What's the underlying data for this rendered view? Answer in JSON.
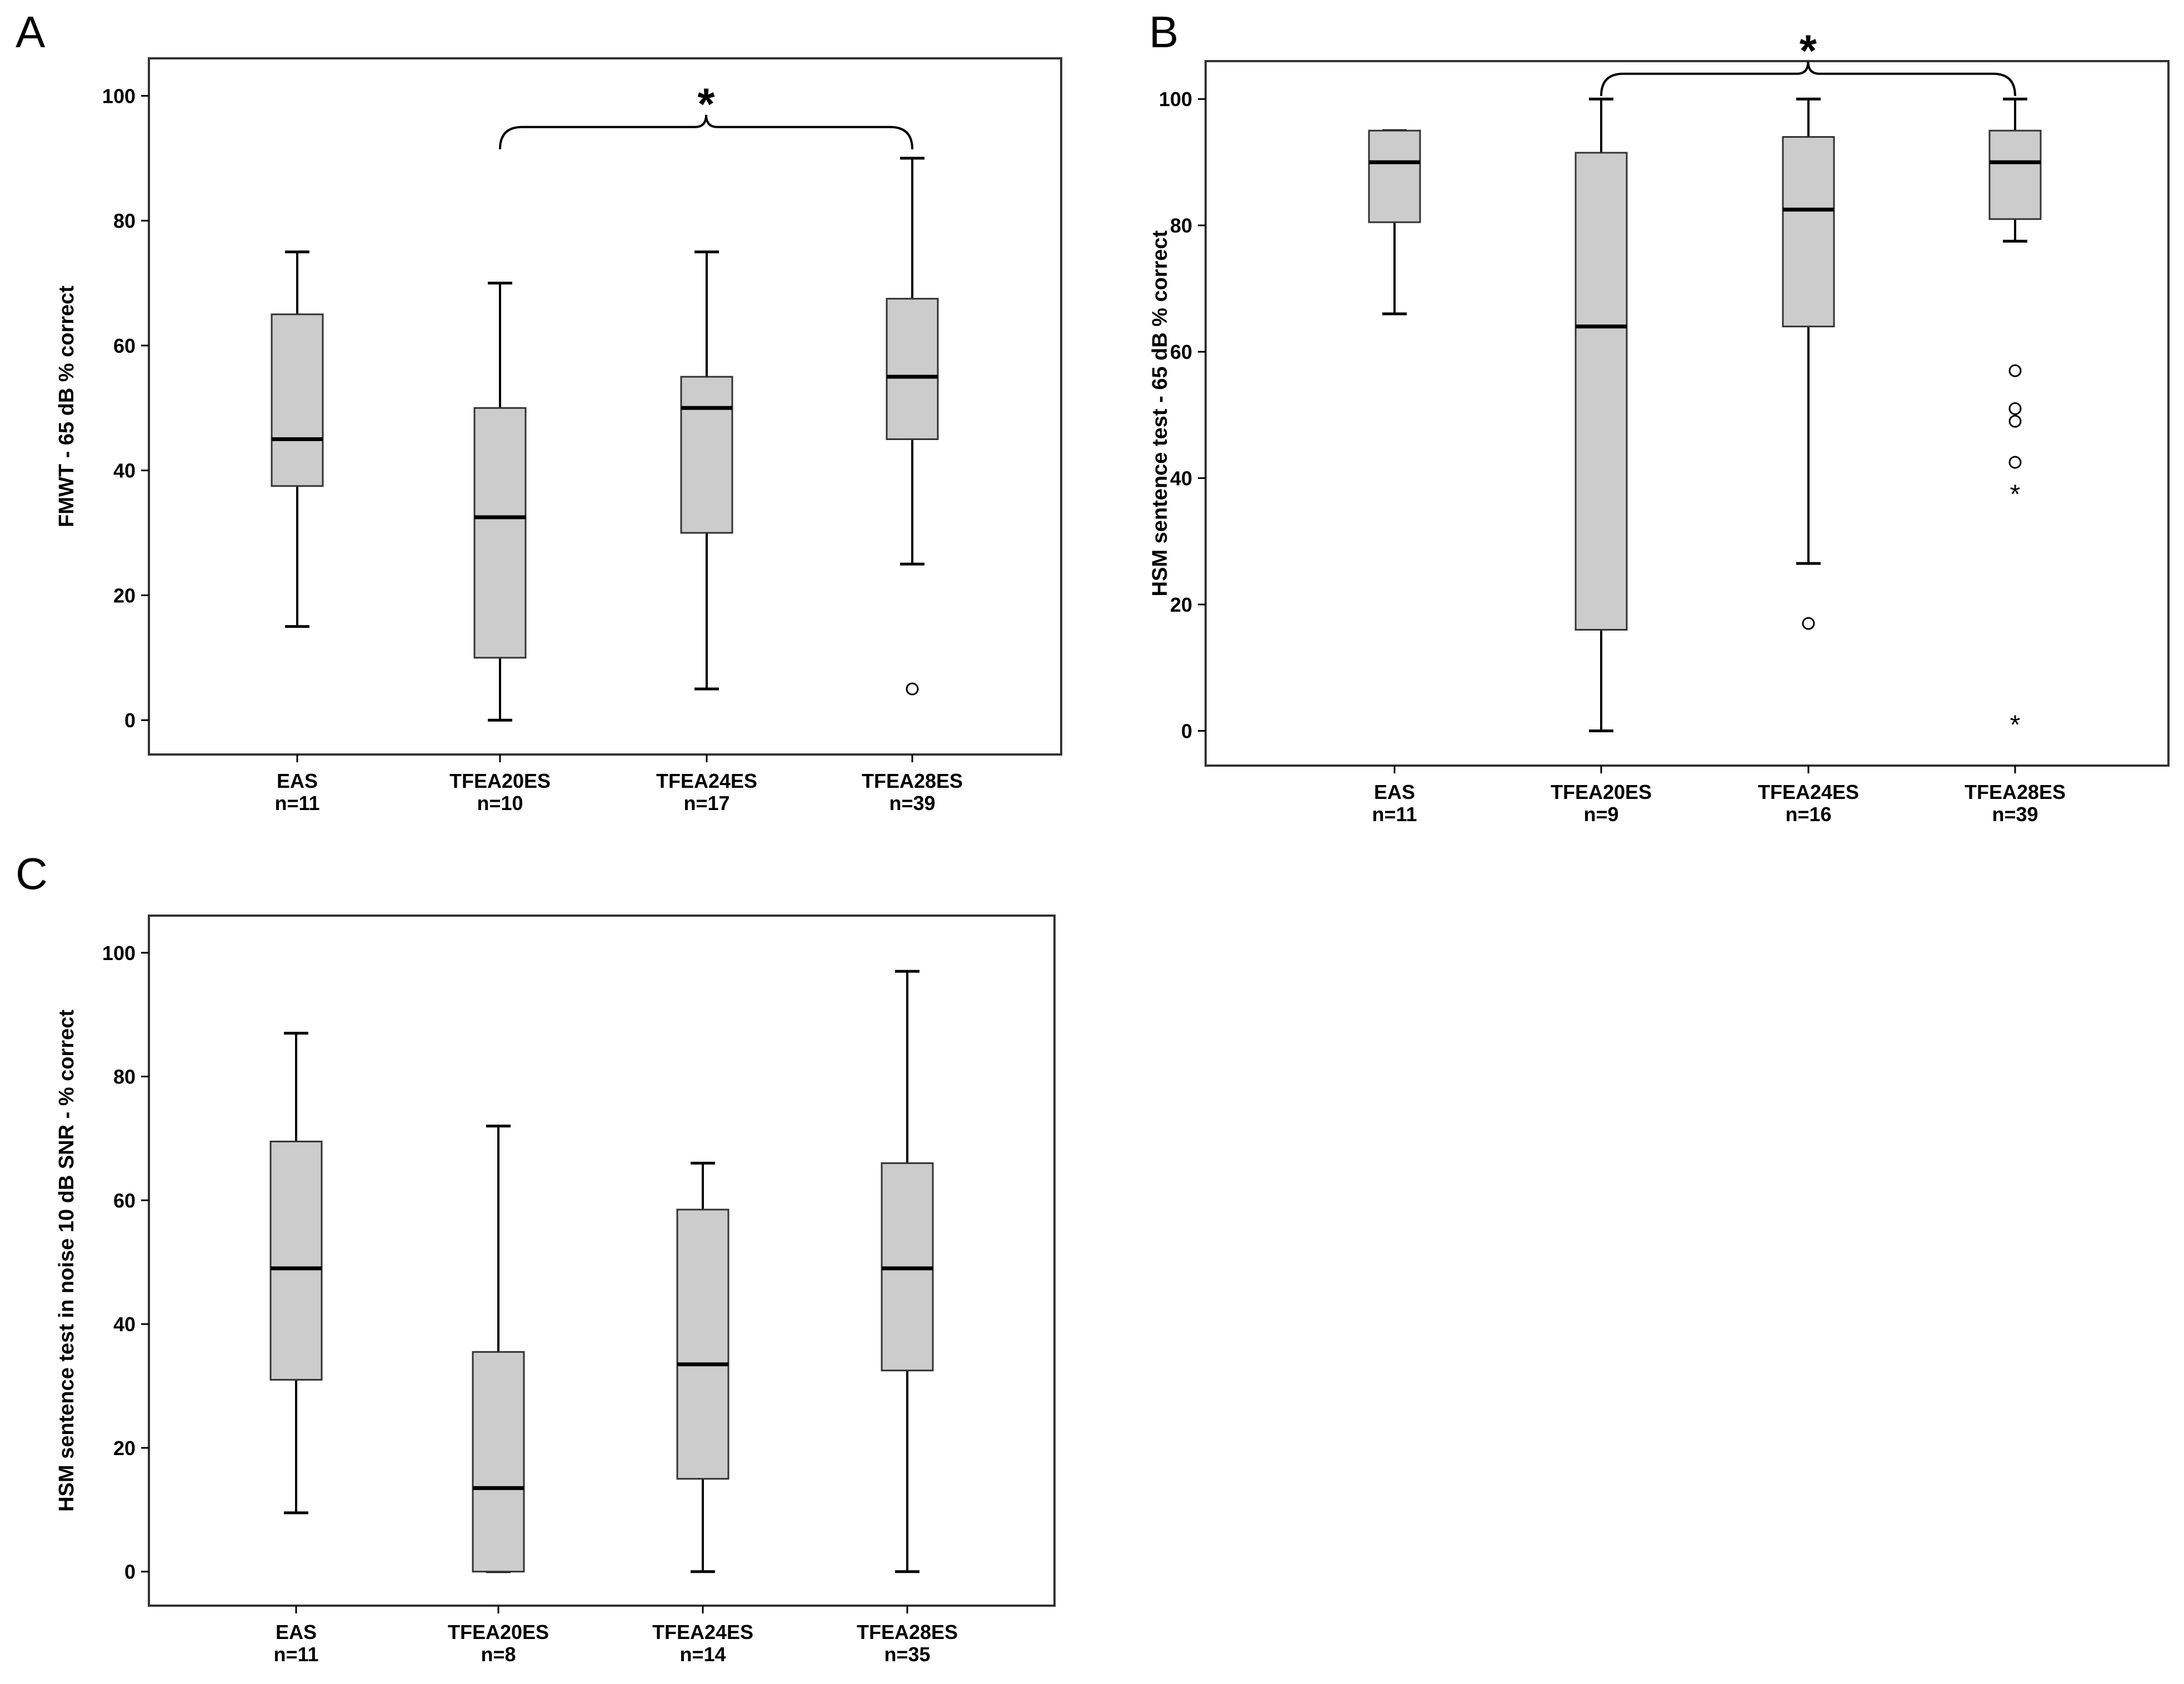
{
  "figure": {
    "panel_labels": [
      "A",
      "B",
      "C"
    ]
  },
  "colors": {
    "box_fill": "#cccccc",
    "stroke": "#000000",
    "frame": "#333333"
  },
  "chart_data": [
    {
      "panel": "A",
      "type": "boxplot",
      "ylabel": "FMWT - 65 dB % correct",
      "ylim": [
        -5.5,
        106
      ],
      "yticks": [
        0,
        20,
        40,
        60,
        80,
        100
      ],
      "categories": [
        "EAS",
        "TFEA20ES",
        "TFEA24ES",
        "TFEA28ES"
      ],
      "n_labels": [
        "n=11",
        "n=10",
        "n=17",
        "n=39"
      ],
      "boxes": [
        {
          "min": 15,
          "q1": 37.5,
          "median": 45,
          "q3": 65,
          "max": 75,
          "outliers": [],
          "extremes": []
        },
        {
          "min": 0,
          "q1": 10,
          "median": 32.5,
          "q3": 50,
          "max": 70,
          "outliers": [],
          "extremes": []
        },
        {
          "min": 5,
          "q1": 30,
          "median": 50,
          "q3": 55,
          "max": 75,
          "outliers": [],
          "extremes": []
        },
        {
          "min": 25,
          "q1": 45,
          "median": 55,
          "q3": 67.5,
          "max": 90,
          "outliers": [
            5
          ],
          "extremes": []
        }
      ],
      "significance": {
        "from": 1,
        "to": 3,
        "level": 95,
        "label": "*"
      }
    },
    {
      "panel": "B",
      "type": "boxplot",
      "ylabel": "HSM sentence test - 65 dB % correct",
      "ylim": [
        -5.5,
        106
      ],
      "yticks": [
        0,
        20,
        40,
        60,
        80,
        100
      ],
      "categories": [
        "EAS",
        "TFEA20ES",
        "TFEA24ES",
        "TFEA28ES"
      ],
      "n_labels": [
        "n=11",
        "n=9",
        "n=16",
        "n=39"
      ],
      "boxes": [
        {
          "min": 66,
          "q1": 80.5,
          "median": 90,
          "q3": 95,
          "max": 95,
          "outliers": [],
          "extremes": []
        },
        {
          "min": 0,
          "q1": 16,
          "median": 64,
          "q3": 91.5,
          "max": 100,
          "outliers": [],
          "extremes": []
        },
        {
          "min": 26.5,
          "q1": 64,
          "median": 82.5,
          "q3": 94,
          "max": 100,
          "outliers": [
            17
          ],
          "extremes": []
        },
        {
          "min": 77.5,
          "q1": 81,
          "median": 90,
          "q3": 95,
          "max": 100,
          "outliers": [
            57,
            51,
            49,
            42.5
          ],
          "extremes": [
            38.5,
            2
          ]
        }
      ],
      "significance": {
        "from": 1,
        "to": 3,
        "level": 104,
        "label": "*"
      }
    },
    {
      "panel": "C",
      "type": "boxplot",
      "ylabel": "HSM sentence test in noise 10 dB SNR - % correct",
      "ylim": [
        -5.5,
        106
      ],
      "yticks": [
        0,
        20,
        40,
        60,
        80,
        100
      ],
      "categories": [
        "EAS",
        "TFEA20ES",
        "TFEA24ES",
        "TFEA28ES"
      ],
      "n_labels": [
        "n=11",
        "n=8",
        "n=14",
        "n=35"
      ],
      "boxes": [
        {
          "min": 9.5,
          "q1": 31,
          "median": 49,
          "q3": 69.5,
          "max": 87,
          "outliers": [],
          "extremes": []
        },
        {
          "min": 0,
          "q1": 0,
          "median": 13.5,
          "q3": 35.5,
          "max": 72,
          "outliers": [],
          "extremes": []
        },
        {
          "min": 0,
          "q1": 15,
          "median": 33.5,
          "q3": 58.5,
          "max": 66,
          "outliers": [],
          "extremes": []
        },
        {
          "min": 0,
          "q1": 32.5,
          "median": 49,
          "q3": 66,
          "max": 97,
          "outliers": [],
          "extremes": []
        }
      ],
      "significance": null
    }
  ]
}
